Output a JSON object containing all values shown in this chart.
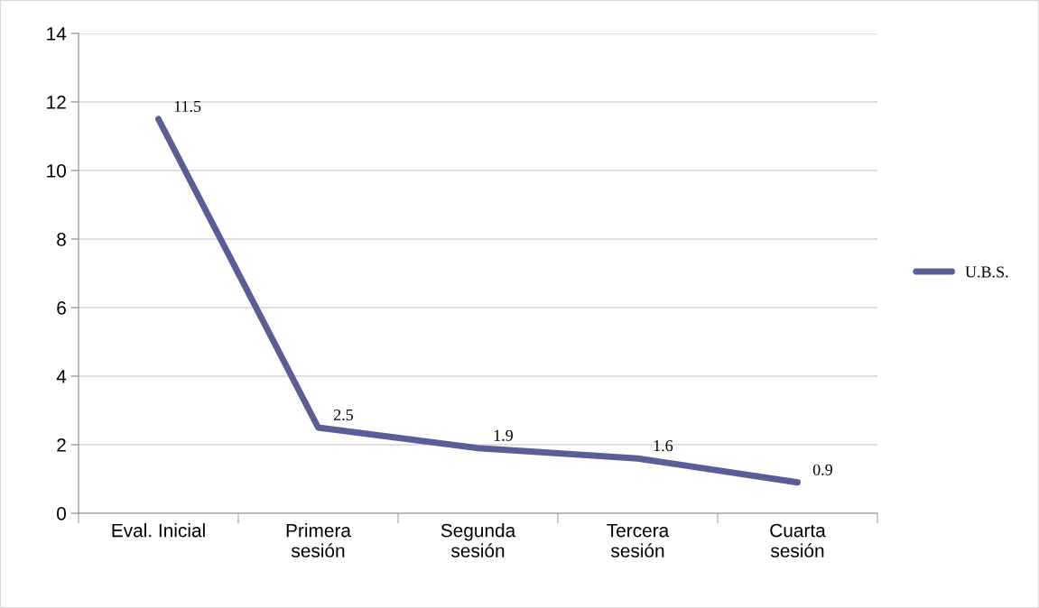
{
  "chart_data": {
    "type": "line",
    "categories": [
      "Eval. Inicial",
      "Primera\nsesión",
      "Segunda\nsesión",
      "Tercera\nsesión",
      "Cuarta\nsesión"
    ],
    "series": [
      {
        "name": "U.B.S.",
        "color": "#5b5e96",
        "values": [
          11.5,
          2.5,
          1.9,
          1.6,
          0.9
        ]
      }
    ],
    "ylim": [
      0,
      14
    ],
    "yticks": [
      0,
      2,
      4,
      6,
      8,
      10,
      12,
      14
    ],
    "grid": "y",
    "legend": "right",
    "data_labels": true,
    "marker": "none",
    "line_style": "solid"
  }
}
